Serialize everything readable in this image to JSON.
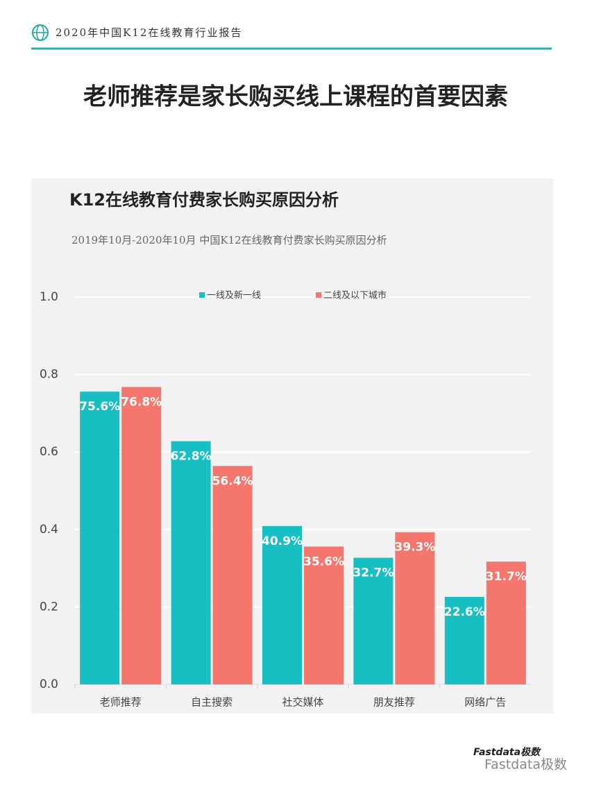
{
  "header": "2020年中国K12在线教育行业报告",
  "headline": "老师推荐是家长购买线上课程的首要因素",
  "watermark": {
    "logo": "Fastdata极数",
    "account": "Fastdata极数"
  },
  "chart_data": {
    "type": "bar",
    "title": "K12在线教育付费家长购买原因分析",
    "subtitle": "2019年10月-2020年10月 中国K12在线教育付费家长购买原因分析",
    "categories": [
      "老师推荐",
      "自主搜索",
      "社交媒体",
      "朋友推荐",
      "网络广告"
    ],
    "series": [
      {
        "name": "一线及新一线",
        "color": "#17bfc3",
        "values": [
          0.756,
          0.628,
          0.409,
          0.327,
          0.226
        ],
        "value_labels": [
          "75.6%",
          "62.8%",
          "40.9%",
          "32.7%",
          "22.6%"
        ]
      },
      {
        "name": "二线及以下城市",
        "color": "#f4766c",
        "values": [
          0.768,
          0.564,
          0.356,
          0.393,
          0.317
        ],
        "value_labels": [
          "76.8%",
          "56.4%",
          "35.6%",
          "39.3%",
          "31.7%"
        ]
      }
    ],
    "ylim": [
      0,
      1
    ],
    "yticks": [
      {
        "value": 0,
        "label": "0.0"
      },
      0.2,
      0.4,
      0.6,
      0.8,
      {
        "value": 1,
        "label": "1.0"
      }
    ],
    "grid": true,
    "legend": "top"
  }
}
